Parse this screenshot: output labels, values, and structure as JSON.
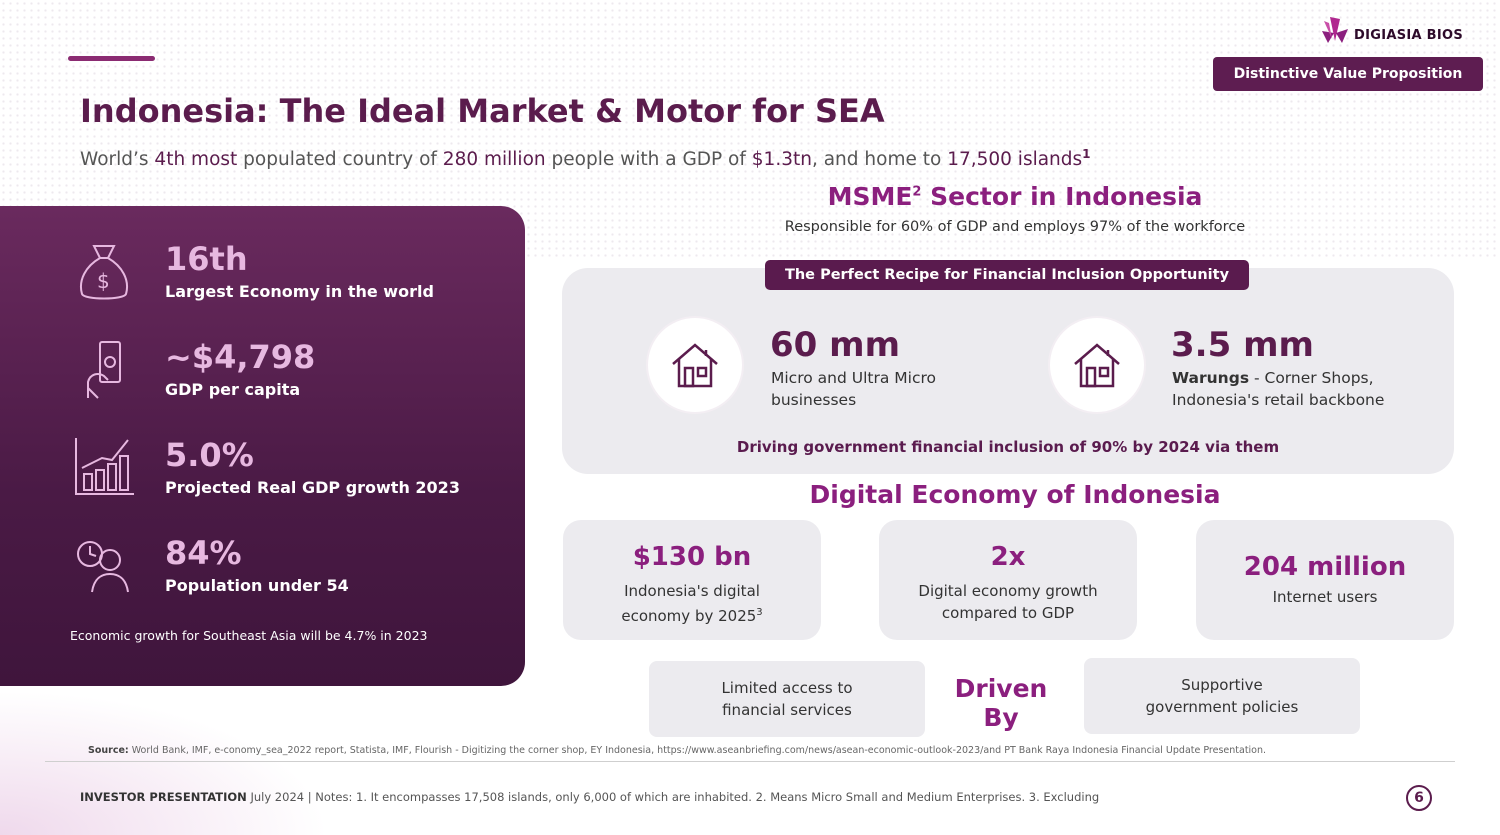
{
  "brand": {
    "name": "DIGIASIA BIOS",
    "tag": "Distinctive Value Proposition"
  },
  "header": {
    "title": "Indonesia: The Ideal Market & Motor for SEA",
    "subtitle_parts": [
      "World’s ",
      "4th most",
      " populated country of ",
      "280 million",
      " people with a GDP of ",
      "$1.3tn",
      ", and home to ",
      "17,500 islands",
      "1"
    ]
  },
  "left_panel": {
    "stats": [
      {
        "icon": "money-bag-icon",
        "value": "16th",
        "label": "Largest Economy in the world"
      },
      {
        "icon": "hand-cash-icon",
        "value": "~$4,798",
        "label": "GDP per capita"
      },
      {
        "icon": "growth-chart-icon",
        "value": "5.0%",
        "label": "Projected Real GDP growth 2023"
      },
      {
        "icon": "person-clock-icon",
        "value": "84%",
        "label": "Population under 54"
      }
    ],
    "note": "Economic growth for Southeast Asia will be 4.7% in 2023"
  },
  "msme": {
    "title": "MSME",
    "title_sup": "2",
    "title_rest": " Sector in Indonesia",
    "subtitle": "Responsible for 60% of GDP and employs 97% of the workforce",
    "recipe_label": "The Perfect Recipe for Financial Inclusion Opportunity",
    "items": [
      {
        "icon": "house-icon",
        "value": "60 mm",
        "line1": "Micro and Ultra Micro",
        "line2": "businesses"
      },
      {
        "icon": "house-icon",
        "value": "3.5 mm",
        "bold": "Warungs",
        "line1": " - Corner Shops,",
        "line2": "Indonesia's retail backbone"
      }
    ],
    "driving": "Driving government financial inclusion of 90% by 2024 via them"
  },
  "digital": {
    "title": "Digital Economy of Indonesia",
    "cards": [
      {
        "value": "$130 bn",
        "line1": "Indonesia's digital",
        "line2": "economy by 2025",
        "sup": "3"
      },
      {
        "value": "2x",
        "line1": "Digital economy growth",
        "line2": "compared to GDP",
        "sup": ""
      },
      {
        "value": "204 million",
        "line1": "Internet users",
        "line2": "",
        "sup": ""
      }
    ],
    "driven_by": "Driven By",
    "drivers": [
      {
        "line1": "Limited access to",
        "line2": "financial services"
      },
      {
        "line1": "Supportive",
        "line2": "government policies"
      }
    ]
  },
  "footer": {
    "source_label": "Source:",
    "source_text": " World Bank, IMF, e-conomy_sea_2022 report, Statista, IMF, Flourish - Digitizing the corner shop, EY Indonesia, https://www.aseanbriefing.com/news/asean-economic-outlook-2023/and PT Bank Raya Indonesia Financial Update Presentation.",
    "label": "INVESTOR PRESENTATION",
    "text": " July 2024 | Notes: 1. It encompasses 17,508 islands, only 6,000 of which are inhabited. 2. Means Micro Small and Medium Enterprises. 3. Excluding",
    "page": "6"
  },
  "colors": {
    "primary": "#5b1c4d",
    "accent": "#8b1f7e",
    "panel": "#4a1a45",
    "card": "#ecebef",
    "stat_value": "#e7b8e0"
  }
}
